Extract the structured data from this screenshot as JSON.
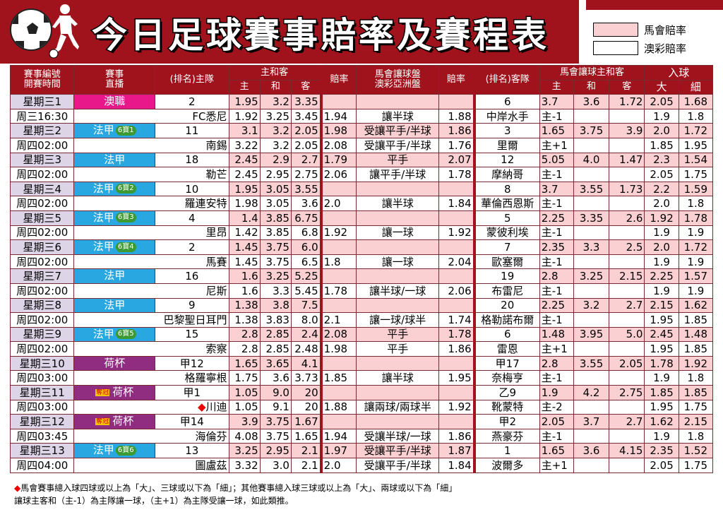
{
  "title": "今日足球賽事賠率及賽程表",
  "legend": [
    {
      "label": "馬會賠率",
      "color": "#fbd0d2"
    },
    {
      "label": "澳彩賠率",
      "color": "#ffffff"
    }
  ],
  "headers": {
    "match_no": "賽事編號",
    "kickoff": "開賽時間",
    "event": "賽事",
    "broadcast": "直播",
    "home": "(排名)主隊",
    "hda": "主和客",
    "h": "主",
    "d": "和",
    "a": "客",
    "odds": "賠率",
    "handicap1": "馬會讓球盤",
    "handicap2": "澳彩亞洲盤",
    "odds2": "賠率",
    "away": "(排名)客隊",
    "hhad": "馬會讓球主和客",
    "goals": "入球",
    "big": "大",
    "small": "細"
  },
  "matches": [
    {
      "no": "星期三1",
      "time": "周三16:30",
      "league": "澳職",
      "tag": "mg",
      "pool": "",
      "spec": "",
      "rank_h": "2",
      "home": "FC悉尼",
      "h1": "1.95",
      "d1": "3.2",
      "a1": "3.35",
      "h2": "1.92",
      "d2": "3.25",
      "a2": "3.45",
      "o1": "",
      "hc1": "",
      "o1b": "",
      "o2": "1.94",
      "hc2": "讓半球",
      "o2b": "1.88",
      "rank_a": "6",
      "away": "中岸水手",
      "hh1": "3.7",
      "hd1": "3.6",
      "ha1": "1.72",
      "hcp": "主-1",
      "big1": "2.05",
      "sm1": "1.68",
      "big2": "1.9",
      "sm2": "1.8"
    },
    {
      "no": "星期三2",
      "time": "周四02:00",
      "league": "法甲",
      "tag": "bl",
      "pool": "6寶1",
      "spec": "",
      "rank_h": "11",
      "home": "南錫",
      "h1": "3.1",
      "d1": "3.2",
      "a1": "2.05",
      "h2": "3.22",
      "d2": "3.2",
      "a2": "2.05",
      "o1": "1.98",
      "hc1": "受讓平手/半球",
      "o1b": "1.86",
      "o2": "2.08",
      "hc2": "受讓平手/半球",
      "o2b": "1.76",
      "rank_a": "3",
      "away": "里爾",
      "hh1": "1.65",
      "hd1": "3.75",
      "ha1": "3.9",
      "hcp": "主+1",
      "big1": "2.0",
      "sm1": "1.72",
      "big2": "1.85",
      "sm2": "1.95"
    },
    {
      "no": "星期三3",
      "time": "周四02:00",
      "league": "法甲",
      "tag": "bl",
      "pool": "",
      "spec": "",
      "rank_h": "18",
      "home": "勒芒",
      "h1": "2.45",
      "d1": "2.9",
      "a1": "2.7",
      "h2": "2.45",
      "d2": "2.95",
      "a2": "2.75",
      "o1": "1.79",
      "hc1": "平手",
      "o1b": "2.07",
      "o2": "2.06",
      "hc2": "讓平手/半球",
      "o2b": "1.78",
      "rank_a": "12",
      "away": "摩納哥",
      "hh1": "5.05",
      "hd1": "4.0",
      "ha1": "1.47",
      "hcp": "主-1",
      "big1": "2.3",
      "sm1": "1.54",
      "big2": "2.05",
      "sm2": "1.75"
    },
    {
      "no": "星期三4",
      "time": "周四02:00",
      "league": "法甲",
      "tag": "bl",
      "pool": "6寶2",
      "spec": "",
      "rank_h": "10",
      "home": "羅連安特",
      "h1": "1.95",
      "d1": "3.05",
      "a1": "3.55",
      "h2": "1.98",
      "d2": "3.05",
      "a2": "3.6",
      "o1": "",
      "hc1": "",
      "o1b": "",
      "o2": "2.0",
      "hc2": "讓半球",
      "o2b": "1.84",
      "rank_a": "8",
      "away": "華倫西恩斯",
      "hh1": "3.7",
      "hd1": "3.55",
      "ha1": "1.73",
      "hcp": "主-1",
      "big1": "2.2",
      "sm1": "1.59",
      "big2": "2.0",
      "sm2": "1.8"
    },
    {
      "no": "星期三5",
      "time": "周四02:00",
      "league": "法甲",
      "tag": "bl",
      "pool": "6寶3",
      "spec": "",
      "rank_h": "4",
      "home": "里昂",
      "h1": "1.4",
      "d1": "3.85",
      "a1": "6.75",
      "h2": "1.42",
      "d2": "3.85",
      "a2": "6.8",
      "o1": "",
      "hc1": "",
      "o1b": "",
      "o2": "1.92",
      "hc2": "讓一球",
      "o2b": "1.92",
      "rank_a": "5",
      "away": "蒙彼利埃",
      "hh1": "2.25",
      "hd1": "3.35",
      "ha1": "2.6",
      "hcp": "主-1",
      "big1": "1.92",
      "sm1": "1.78",
      "big2": "1.9",
      "sm2": "1.9"
    },
    {
      "no": "星期三6",
      "time": "周四02:00",
      "league": "法甲",
      "tag": "bl",
      "pool": "6寶4",
      "spec": "",
      "rank_h": "2",
      "home": "馬賽",
      "h1": "1.45",
      "d1": "3.75",
      "a1": "6.0",
      "h2": "1.45",
      "d2": "3.75",
      "a2": "6.5",
      "o1": "",
      "hc1": "",
      "o1b": "",
      "o2": "1.8",
      "hc2": "讓一球",
      "o2b": "2.04",
      "rank_a": "7",
      "away": "歐塞爾",
      "hh1": "2.35",
      "hd1": "3.3",
      "ha1": "2.5",
      "hcp": "主-1",
      "big1": "2.0",
      "sm1": "1.72",
      "big2": "1.9",
      "sm2": "1.9"
    },
    {
      "no": "星期三7",
      "time": "周四02:00",
      "league": "法甲",
      "tag": "bl",
      "pool": "",
      "spec": "",
      "rank_h": "16",
      "home": "尼斯",
      "h1": "1.6",
      "d1": "3.25",
      "a1": "5.25",
      "h2": "1.6",
      "d2": "3.3",
      "a2": "5.45",
      "o1": "",
      "hc1": "",
      "o1b": "",
      "o2": "1.78",
      "hc2": "讓半球/一球",
      "o2b": "2.06",
      "rank_a": "19",
      "away": "布雷尼",
      "hh1": "2.8",
      "hd1": "3.25",
      "ha1": "2.15",
      "hcp": "主-1",
      "big1": "2.25",
      "sm1": "1.57",
      "big2": "1.9",
      "sm2": "1.9"
    },
    {
      "no": "星期三8",
      "time": "周四02:00",
      "league": "法甲",
      "tag": "bl",
      "pool": "",
      "spec": "",
      "rank_h": "9",
      "home": "巴黎聖日耳門",
      "h1": "1.38",
      "d1": "3.8",
      "a1": "7.5",
      "h2": "1.38",
      "d2": "3.83",
      "a2": "8.0",
      "o1": "",
      "hc1": "",
      "o1b": "",
      "o2": "2.1",
      "hc2": "讓一球/球半",
      "o2b": "1.74",
      "rank_a": "20",
      "away": "格勒諾布爾",
      "hh1": "2.25",
      "hd1": "3.2",
      "ha1": "2.7",
      "hcp": "主-1",
      "big1": "2.15",
      "sm1": "1.62",
      "big2": "1.95",
      "sm2": "1.85"
    },
    {
      "no": "星期三9",
      "time": "周四02:00",
      "league": "法甲",
      "tag": "bl",
      "pool": "6寶5",
      "spec": "",
      "rank_h": "15",
      "home": "索察",
      "h1": "2.8",
      "d1": "2.85",
      "a1": "2.4",
      "h2": "2.8",
      "d2": "2.85",
      "a2": "2.48",
      "o1": "2.08",
      "hc1": "平手",
      "o1b": "1.78",
      "o2": "1.98",
      "hc2": "平手",
      "o2b": "1.86",
      "rank_a": "6",
      "away": "雷恩",
      "hh1": "1.48",
      "hd1": "3.95",
      "ha1": "5.0",
      "hcp": "主+1",
      "big1": "2.45",
      "sm1": "1.48",
      "big2": "1.95",
      "sm2": "1.85"
    },
    {
      "no": "星期三10",
      "time": "周四03:00",
      "league": "荷杯",
      "tag": "pp",
      "pool": "",
      "spec": "",
      "rank_h": "甲12",
      "home": "格羅寧根",
      "h1": "1.65",
      "d1": "3.65",
      "a1": "4.1",
      "h2": "1.75",
      "d2": "3.6",
      "a2": "3.73",
      "o1": "",
      "hc1": "",
      "o1b": "",
      "o2": "1.85",
      "hc2": "讓半球",
      "o2b": "1.95",
      "rank_a": "甲17",
      "away": "奈梅亨",
      "hh1": "2.8",
      "hd1": "3.55",
      "ha1": "2.05",
      "hcp": "主-1",
      "big1": "1.78",
      "sm1": "1.92",
      "big2": "1.9",
      "sm2": "1.8"
    },
    {
      "no": "星期三11",
      "time": "周四03:00",
      "league": "荷杯",
      "tag": "pp",
      "pool": "",
      "spec": "奪冠",
      "rank_h": "甲1",
      "home": "川迪",
      "h1": "1.05",
      "d1": "9.0",
      "a1": "20",
      "h2": "1.05",
      "d2": "9.1",
      "a2": "20",
      "o1": "",
      "hc1": "",
      "o1b": "",
      "o2": "1.88",
      "hc2": "讓兩球/兩球半",
      "o2b": "1.92",
      "rank_a": "乙9",
      "away": "靴蒙特",
      "hh1": "1.9",
      "hd1": "4.2",
      "ha1": "2.75",
      "hcp": "主-2",
      "big1": "1.85",
      "sm1": "1.85",
      "big2": "1.95",
      "sm2": "1.75"
    },
    {
      "no": "星期三12",
      "time": "周四03:45",
      "league": "荷杯",
      "tag": "pp",
      "pool": "",
      "spec": "奪冠",
      "rank_h": "甲14",
      "home": "海倫芬",
      "h1": "3.9",
      "d1": "3.75",
      "a1": "1.67",
      "h2": "4.08",
      "d2": "3.75",
      "a2": "1.65",
      "o1": "",
      "hc1": "",
      "o1b": "",
      "o2": "1.94",
      "hc2": "受讓半球/一球",
      "o2b": "1.86",
      "rank_a": "甲2",
      "away": "燕豪芬",
      "hh1": "2.05",
      "hd1": "3.7",
      "ha1": "2.7",
      "hcp": "主-1",
      "big1": "1.62",
      "sm1": "2.15",
      "big2": "1.9",
      "sm2": "1.8"
    },
    {
      "no": "星期三13",
      "time": "周四04:00",
      "league": "法甲",
      "tag": "bl",
      "pool": "6寶6",
      "spec": "",
      "rank_h": "13",
      "home": "圖盧茲",
      "h1": "3.25",
      "d1": "2.95",
      "a1": "2.1",
      "h2": "3.32",
      "d2": "3.0",
      "a2": "2.1",
      "o1": "1.97",
      "hc1": "受讓平手/半球",
      "o1b": "1.87",
      "o2": "2.0",
      "hc2": "受讓平手/半球",
      "o2b": "1.84",
      "rank_a": "1",
      "away": "波爾多",
      "hh1": "1.65",
      "hd1": "3.6",
      "ha1": "4.15",
      "hcp": "主+1",
      "big1": "2.35",
      "sm1": "1.52",
      "big2": "2.05",
      "sm2": "1.75"
    }
  ],
  "diamond_match_index": 10,
  "notes": [
    "馬會賽事總入球四球或以上為「大」、三球或以下為「細」；其他賽事總入球三球或以上為「大」、兩球或以下為「細」",
    "讓球主客和（主-1）為主隊讓一球，（主+1）為主隊受讓一球，如此類推。"
  ]
}
